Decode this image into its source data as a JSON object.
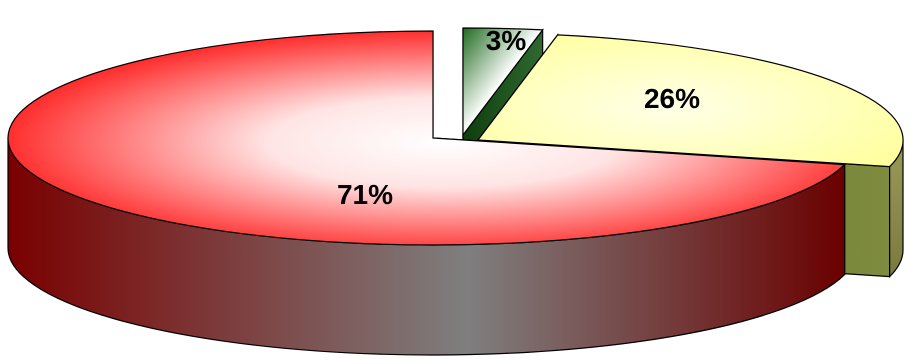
{
  "chart_data": {
    "type": "pie",
    "style": "3d-exploded",
    "slices": [
      {
        "label": "3%",
        "value": 3,
        "color": "#2e6b2e"
      },
      {
        "label": "26%",
        "value": 26,
        "color": "#ffffa8"
      },
      {
        "label": "71%",
        "value": 71,
        "color": "#ff1a1a"
      }
    ],
    "legend": false
  }
}
